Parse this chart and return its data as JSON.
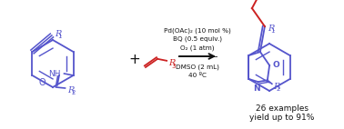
{
  "bg_color": "#ffffff",
  "blue": "#5555cc",
  "red": "#cc2222",
  "black": "#111111",
  "fig_width": 3.78,
  "fig_height": 1.42,
  "dpi": 100,
  "conditions": [
    "Pd(OAc)₂ (10 mol %)",
    "BQ (0.5 equiv.)",
    "O₂ (1 atm)",
    "DMSO (2 mL)",
    "40 ºC"
  ],
  "bottom1": "26 examples",
  "bottom2": "yield up to 91%"
}
